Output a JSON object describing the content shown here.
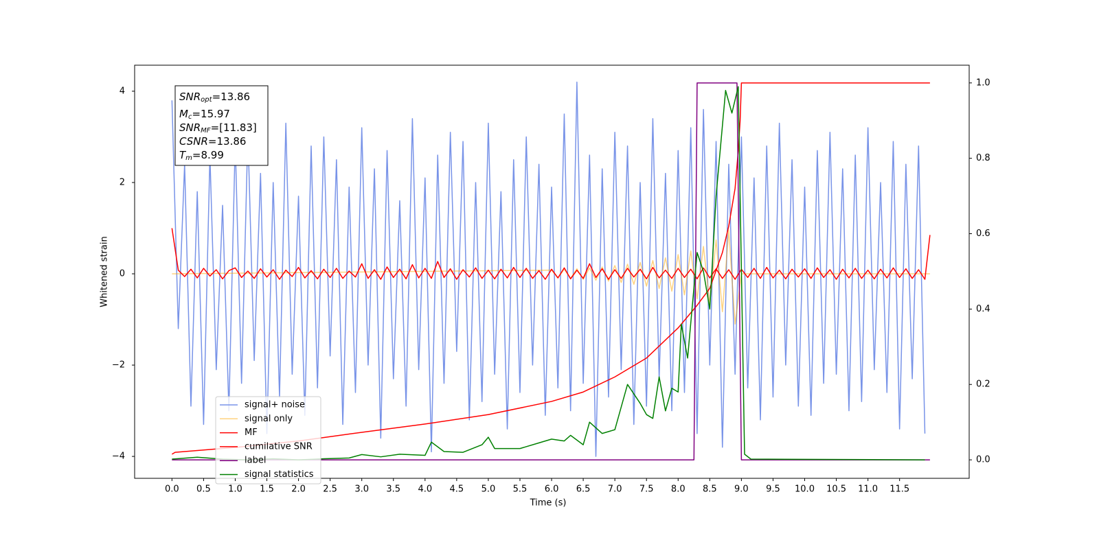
{
  "chart_data": {
    "type": "line",
    "xlabel": "Time (s)",
    "ylabel": "Whitened strain",
    "xlim": [
      -0.59,
      12.6
    ],
    "ylim": [
      -4.48,
      4.57
    ],
    "y2lim": [
      -0.049,
      1.047
    ],
    "xticks": [
      {
        "value": 0,
        "label": "0.0"
      },
      0.5,
      {
        "value": 1,
        "label": "1.0"
      },
      1.5,
      {
        "value": 2,
        "label": "2.0"
      },
      2.5,
      {
        "value": 3,
        "label": "3.0"
      },
      3.5,
      {
        "value": 4,
        "label": "4.0"
      },
      4.5,
      {
        "value": 5,
        "label": "5.0"
      },
      5.5,
      {
        "value": 6,
        "label": "6.0"
      },
      6.5,
      {
        "value": 7,
        "label": "7.0"
      },
      7.5,
      {
        "value": 8,
        "label": "8.0"
      },
      8.5,
      {
        "value": 9,
        "label": "9.0"
      },
      9.5,
      {
        "value": 10,
        "label": "10.0"
      },
      10.5,
      {
        "value": 11,
        "label": "11.0"
      },
      11.5
    ],
    "yticks": [
      {
        "value": -4,
        "label": "−4"
      },
      {
        "value": -2,
        "label": "−2"
      },
      0,
      2,
      4
    ],
    "y2ticks": [
      {
        "value": 0,
        "label": "0.0"
      },
      0.2,
      0.4,
      0.6,
      0.8,
      {
        "value": 1,
        "label": "1.0"
      }
    ],
    "legend": "lower left",
    "annotation": [
      {
        "var": "SNR",
        "sub": "opt",
        "text": "=13.86"
      },
      {
        "var": "M",
        "sub": "c",
        "text": "=15.97"
      },
      {
        "var": "SNR",
        "sub": "MF",
        "text": "=[11.83]"
      },
      {
        "var": "CSNR",
        "sub": null,
        "text": "=13.86"
      },
      {
        "var": "T",
        "sub": "m",
        "text": "=8.99"
      }
    ],
    "series": [
      {
        "name": "signal+ noise",
        "color": "#7893e8",
        "axis": "y",
        "x": [
          0,
          0.1,
          0.2,
          0.3,
          0.4,
          0.5,
          0.6,
          0.7,
          0.8,
          0.9,
          1,
          1.1,
          1.2,
          1.3,
          1.4,
          1.5,
          1.6,
          1.7,
          1.8,
          1.9,
          2,
          2.1,
          2.2,
          2.3,
          2.4,
          2.5,
          2.6,
          2.7,
          2.8,
          2.9,
          3,
          3.1,
          3.2,
          3.3,
          3.4,
          3.5,
          3.6,
          3.7,
          3.8,
          3.9,
          4,
          4.1,
          4.2,
          4.3,
          4.4,
          4.5,
          4.6,
          4.7,
          4.8,
          4.9,
          5,
          5.1,
          5.2,
          5.3,
          5.4,
          5.5,
          5.6,
          5.7,
          5.8,
          5.9,
          6,
          6.1,
          6.2,
          6.3,
          6.4,
          6.5,
          6.6,
          6.7,
          6.8,
          6.9,
          7,
          7.1,
          7.2,
          7.3,
          7.4,
          7.5,
          7.6,
          7.7,
          7.8,
          7.9,
          8,
          8.1,
          8.2,
          8.3,
          8.4,
          8.5,
          8.6,
          8.7,
          8.8,
          8.9,
          9,
          9.1,
          9.2,
          9.3,
          9.4,
          9.5,
          9.6,
          9.7,
          9.8,
          9.9,
          10,
          10.1,
          10.2,
          10.3,
          10.4,
          10.5,
          10.6,
          10.7,
          10.8,
          10.9,
          11,
          11.1,
          11.2,
          11.3,
          11.4,
          11.5,
          11.6,
          11.7,
          11.8,
          11.9
        ],
        "values": [
          3.8,
          -1.2,
          2.4,
          -2.9,
          1.8,
          -3.3,
          2.6,
          -2.1,
          1.5,
          -3.0,
          2.9,
          -2.4,
          3.1,
          -1.9,
          2.2,
          -3.5,
          2.0,
          -2.7,
          3.3,
          -2.2,
          1.7,
          -3.1,
          2.8,
          -2.5,
          3.0,
          -1.8,
          2.5,
          -3.3,
          1.9,
          -2.6,
          3.2,
          -2.0,
          2.3,
          -3.6,
          2.7,
          -2.3,
          1.6,
          -2.9,
          3.4,
          -2.1,
          2.1,
          -3.9,
          2.6,
          -2.4,
          3.1,
          -1.7,
          2.9,
          -3.2,
          2.0,
          -2.8,
          3.3,
          -2.2,
          1.8,
          -3.4,
          2.5,
          -2.6,
          3.0,
          -2.0,
          2.4,
          -3.1,
          1.9,
          -2.5,
          3.5,
          -3.0,
          4.2,
          -2.4,
          2.6,
          -4.0,
          2.3,
          -2.7,
          3.1,
          -2.1,
          2.8,
          -3.3,
          2.0,
          -2.9,
          3.4,
          -2.3,
          2.2,
          -3.0,
          2.7,
          -2.6,
          3.2,
          -3.5,
          3.6,
          -2.0,
          2.9,
          -3.8,
          2.4,
          -2.2,
          3.0,
          -2.5,
          2.1,
          -3.2,
          2.8,
          -2.7,
          3.3,
          -2.0,
          2.5,
          -2.9,
          1.9,
          -3.1,
          2.7,
          -2.4,
          3.1,
          -2.2,
          2.3,
          -3.0,
          2.6,
          -2.8,
          3.2,
          -2.1,
          2.0,
          -2.6,
          2.9,
          -3.4,
          2.4,
          -2.3,
          2.8,
          -3.5
        ]
      },
      {
        "name": "signal only",
        "color": "#ffa500",
        "alpha": 0.5,
        "axis": "y",
        "x": [
          0,
          6,
          6.1,
          6.2,
          6.3,
          6.4,
          6.5,
          6.6,
          6.7,
          6.8,
          6.9,
          7,
          7.1,
          7.2,
          7.3,
          7.4,
          7.5,
          7.6,
          7.7,
          7.8,
          7.9,
          8,
          8.1,
          8.2,
          8.3,
          8.4,
          8.5,
          8.6,
          8.7,
          8.8,
          8.9,
          9,
          11.98
        ],
        "values": [
          0,
          0.08,
          -0.09,
          0.1,
          -0.1,
          0.11,
          -0.12,
          0.13,
          -0.14,
          0.15,
          -0.16,
          0.18,
          -0.19,
          0.21,
          -0.23,
          0.25,
          -0.27,
          0.29,
          -0.32,
          0.35,
          -0.38,
          0.42,
          -0.46,
          0.5,
          -0.55,
          0.6,
          -0.66,
          0.74,
          -0.83,
          0.95,
          -1.1,
          0,
          0
        ]
      },
      {
        "name": "MF",
        "color": "#ff0000",
        "axis": "y",
        "x": [
          0,
          0.1,
          0.2,
          0.3,
          0.4,
          0.5,
          0.6,
          0.7,
          0.8,
          0.9,
          1,
          1.1,
          1.2,
          1.3,
          1.4,
          1.5,
          1.6,
          1.7,
          1.8,
          1.9,
          2,
          2.1,
          2.2,
          2.3,
          2.4,
          2.5,
          2.6,
          2.7,
          2.8,
          2.9,
          3,
          3.1,
          3.2,
          3.3,
          3.4,
          3.5,
          3.6,
          3.7,
          3.8,
          3.9,
          4,
          4.1,
          4.2,
          4.3,
          4.4,
          4.5,
          4.6,
          4.7,
          4.8,
          4.9,
          5,
          5.1,
          5.2,
          5.3,
          5.4,
          5.5,
          5.6,
          5.7,
          5.8,
          5.9,
          6,
          6.1,
          6.2,
          6.3,
          6.4,
          6.5,
          6.6,
          6.7,
          6.8,
          6.9,
          7,
          7.1,
          7.2,
          7.3,
          7.4,
          7.5,
          7.6,
          7.7,
          7.8,
          7.9,
          8,
          8.1,
          8.2,
          8.3,
          8.4,
          8.5,
          8.6,
          8.7,
          8.8,
          8.9,
          9,
          9.1,
          9.2,
          9.3,
          9.4,
          9.5,
          9.6,
          9.7,
          9.8,
          9.9,
          10,
          10.1,
          10.2,
          10.3,
          10.4,
          10.5,
          10.6,
          10.7,
          10.8,
          10.9,
          11,
          11.1,
          11.2,
          11.3,
          11.4,
          11.5,
          11.6,
          11.7,
          11.8,
          11.9,
          11.98
        ],
        "values": [
          1.0,
          0.08,
          -0.06,
          0.1,
          -0.09,
          0.12,
          -0.05,
          0.09,
          -0.11,
          0.07,
          0.13,
          -0.08,
          0.06,
          -0.1,
          0.11,
          -0.07,
          0.09,
          -0.12,
          0.08,
          -0.06,
          0.14,
          -0.09,
          0.07,
          -0.11,
          0.1,
          -0.08,
          0.12,
          -0.1,
          0.06,
          -0.07,
          0.22,
          -0.1,
          0.09,
          -0.12,
          0.15,
          -0.08,
          0.1,
          -0.11,
          0.2,
          -0.09,
          0.12,
          -0.1,
          0.27,
          -0.08,
          0.11,
          -0.12,
          0.09,
          -0.07,
          0.13,
          -0.1,
          0.08,
          -0.11,
          0.1,
          -0.09,
          0.14,
          -0.08,
          0.12,
          -0.1,
          0.07,
          -0.12,
          0.1,
          -0.09,
          0.13,
          -0.11,
          0.08,
          -0.1,
          0.22,
          -0.08,
          0.11,
          -0.12,
          0.09,
          -0.1,
          0.12,
          -0.07,
          0.1,
          -0.11,
          0.14,
          -0.09,
          0.08,
          -0.1,
          0.12,
          -0.08,
          0.1,
          -0.11,
          0.13,
          -0.09,
          0.11,
          -0.1,
          0.09,
          -0.12,
          0.1,
          -0.08,
          0.12,
          -0.1,
          0.14,
          -0.09,
          0.08,
          -0.11,
          0.1,
          -0.07,
          0.11,
          -0.1,
          0.13,
          -0.08,
          0.09,
          -0.12,
          0.1,
          -0.09,
          0.12,
          -0.1,
          0.08,
          -0.11,
          0.1,
          -0.09,
          0.13,
          -0.08,
          0.11,
          -0.1,
          0.09,
          -0.12,
          0.85
        ]
      },
      {
        "name": "cumilative SNR",
        "color": "#ff0000",
        "axis": "y2",
        "x": [
          0,
          0.05,
          1,
          2,
          3,
          4,
          5,
          6,
          6.5,
          7,
          7.5,
          8,
          8.3,
          8.5,
          8.7,
          8.8,
          8.9,
          8.95,
          8.98,
          9,
          11.98
        ],
        "values": [
          0.015,
          0.02,
          0.033,
          0.05,
          0.073,
          0.095,
          0.12,
          0.155,
          0.18,
          0.22,
          0.27,
          0.35,
          0.41,
          0.455,
          0.55,
          0.62,
          0.72,
          0.82,
          0.9,
          1.0,
          1.0
        ]
      },
      {
        "name": "label",
        "color": "#800080",
        "axis": "y2",
        "x": [
          0,
          8.25,
          8.3,
          8.93,
          9,
          11.98
        ],
        "values": [
          0,
          0,
          1,
          1,
          0,
          0
        ]
      },
      {
        "name": "signal statistics",
        "color": "#008000",
        "axis": "y2",
        "x": [
          0,
          0.4,
          0.8,
          1.2,
          1.6,
          2,
          2.4,
          2.8,
          3,
          3.3,
          3.6,
          4,
          4.1,
          4.3,
          4.6,
          4.9,
          5,
          5.1,
          5.5,
          5.8,
          6,
          6.2,
          6.3,
          6.5,
          6.6,
          6.8,
          7,
          7.2,
          7.4,
          7.5,
          7.6,
          7.7,
          7.8,
          7.9,
          8,
          8.05,
          8.15,
          8.3,
          8.4,
          8.5,
          8.6,
          8.75,
          8.85,
          8.95,
          9.05,
          9.15,
          11.9
        ],
        "values": [
          0.002,
          0.007,
          0.002,
          0.0,
          0.003,
          0.0,
          0.003,
          0.005,
          0.014,
          0.008,
          0.015,
          0.012,
          0.047,
          0.022,
          0.02,
          0.04,
          0.06,
          0.03,
          0.03,
          0.045,
          0.055,
          0.05,
          0.065,
          0.04,
          0.1,
          0.07,
          0.08,
          0.2,
          0.15,
          0.12,
          0.11,
          0.22,
          0.13,
          0.19,
          0.18,
          0.36,
          0.27,
          0.55,
          0.5,
          0.4,
          0.7,
          0.98,
          0.92,
          0.99,
          0.015,
          0.002,
          0.0
        ]
      }
    ]
  }
}
